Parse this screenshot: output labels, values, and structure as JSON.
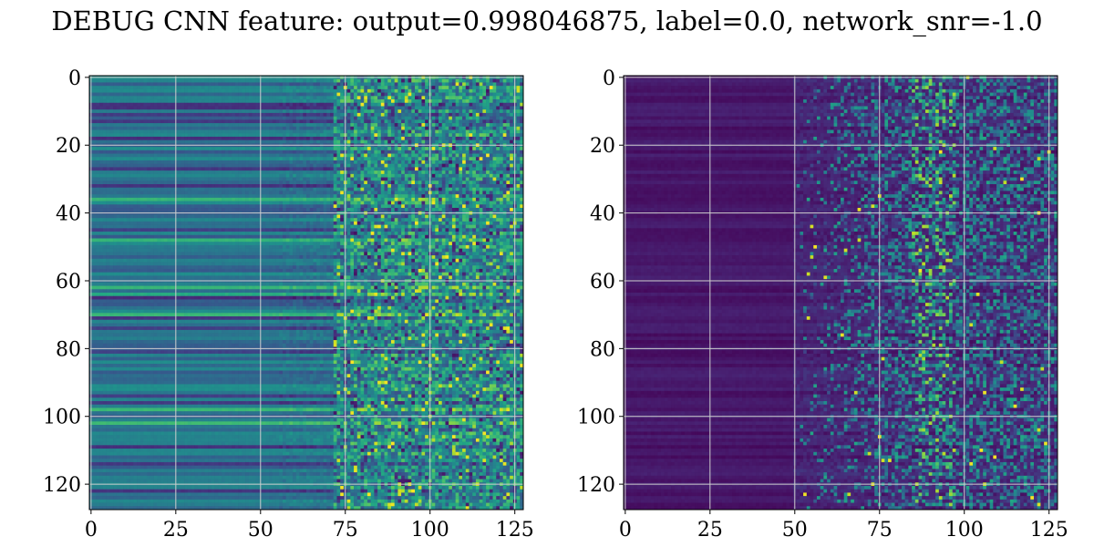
{
  "figure": {
    "title": "DEBUG CNN feature: output=0.998046875, label=0.0, network_snr=-1.0"
  },
  "chart_data": [
    {
      "type": "heatmap",
      "colormap": "viridis",
      "title": "",
      "xlabel": "",
      "ylabel": "",
      "shape": [
        128,
        128
      ],
      "xlim": [
        -0.5,
        127.5
      ],
      "ylim": [
        127.5,
        -0.5
      ],
      "x_ticks": [
        0,
        25,
        50,
        75,
        100,
        125
      ],
      "y_ticks": [
        0,
        20,
        40,
        60,
        80,
        100,
        120
      ],
      "grid": true,
      "pattern": "left region (cols 0-70) smooth horizontal bands at mid-level (~0.3-0.5); right region (cols 75-127) noisy with scattered bright yellow pixels"
    },
    {
      "type": "heatmap",
      "colormap": "viridis",
      "title": "",
      "xlabel": "",
      "ylabel": "",
      "shape": [
        128,
        128
      ],
      "xlim": [
        -0.5,
        127.5
      ],
      "ylim": [
        127.5,
        -0.5
      ],
      "x_ticks": [
        0,
        25,
        50,
        75,
        100,
        125
      ],
      "y_ticks": [
        0,
        20,
        40,
        60,
        80,
        100,
        120
      ],
      "grid": true,
      "pattern": "left region (cols 0-50) dark purple (~0.0-0.1); right region (cols 50-127) noisy teal/green speckle with a few bright yellow pixels near col 90"
    }
  ]
}
